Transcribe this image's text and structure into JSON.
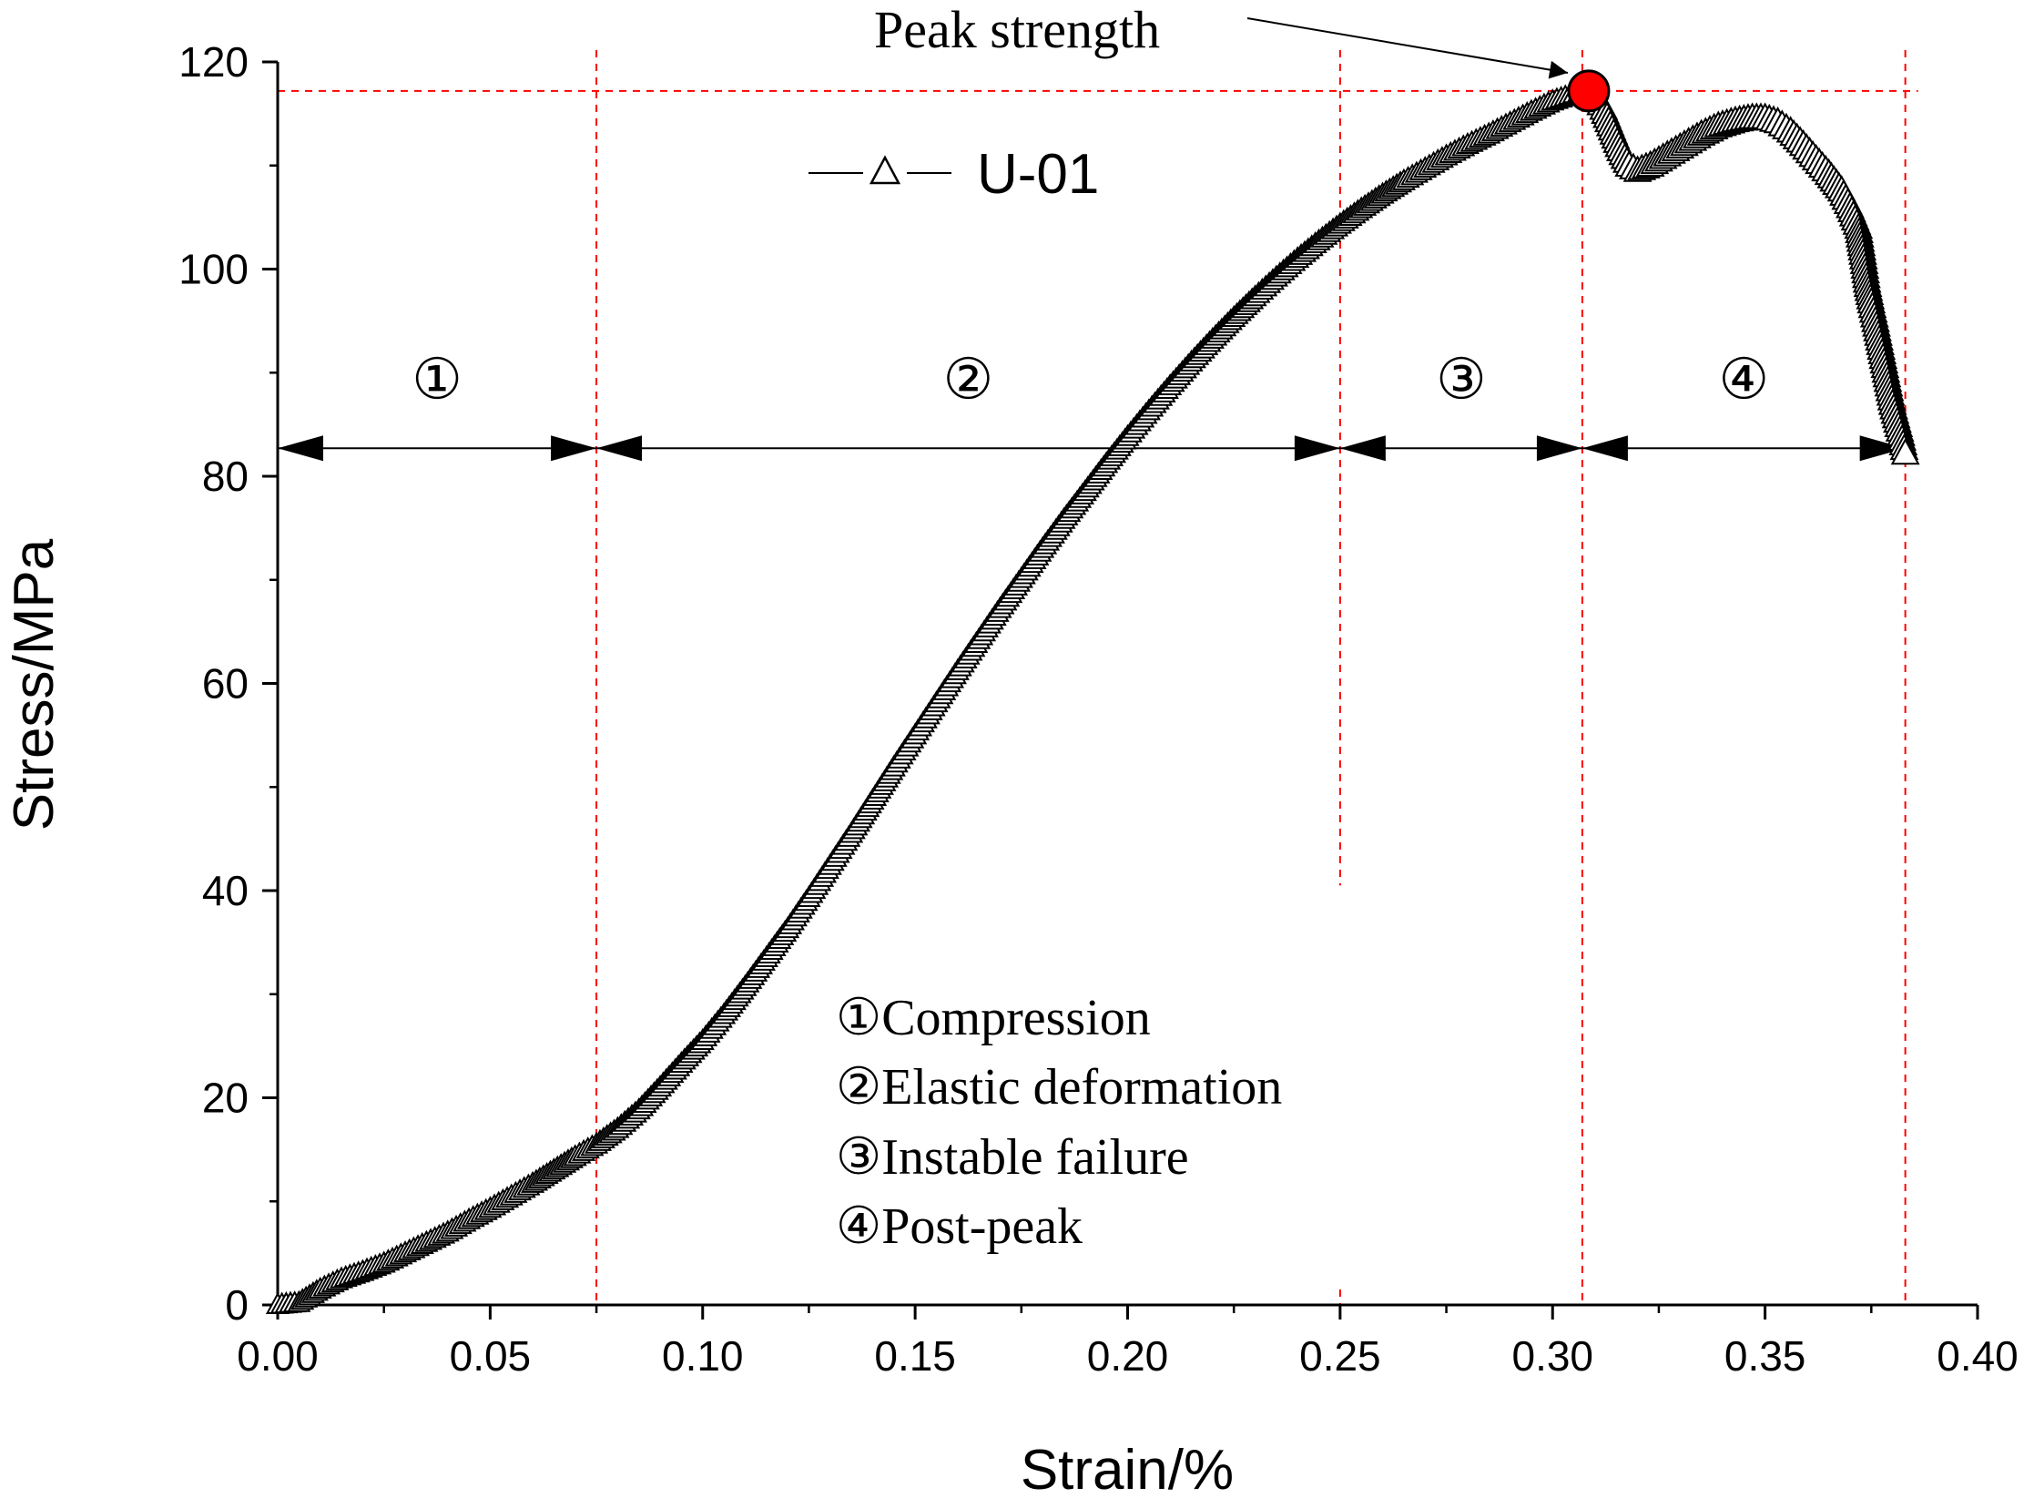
{
  "chart_data": {
    "type": "line",
    "title": "",
    "xlabel": "Strain/%",
    "ylabel": "Stress/MPa",
    "xlim": [
      0.0,
      0.4
    ],
    "ylim": [
      0,
      120
    ],
    "x_ticks": [
      "0.00",
      "0.05",
      "0.10",
      "0.15",
      "0.20",
      "0.25",
      "0.30",
      "0.35",
      "0.40"
    ],
    "y_ticks": [
      "0",
      "20",
      "40",
      "60",
      "80",
      "100",
      "120"
    ],
    "series": [
      {
        "name": "U-01",
        "marker": "open-triangle",
        "points": [
          [
            0.0,
            0.0
          ],
          [
            0.005,
            0.2
          ],
          [
            0.01,
            1.5
          ],
          [
            0.015,
            2.5
          ],
          [
            0.02,
            3.2
          ],
          [
            0.025,
            4.0
          ],
          [
            0.03,
            5.0
          ],
          [
            0.035,
            6.0
          ],
          [
            0.04,
            7.0
          ],
          [
            0.045,
            8.2
          ],
          [
            0.05,
            9.3
          ],
          [
            0.055,
            10.5
          ],
          [
            0.06,
            11.7
          ],
          [
            0.065,
            13.0
          ],
          [
            0.07,
            14.3
          ],
          [
            0.075,
            15.5
          ],
          [
            0.08,
            17.0
          ],
          [
            0.085,
            18.8
          ],
          [
            0.09,
            21.0
          ],
          [
            0.095,
            23.3
          ],
          [
            0.1,
            25.5
          ],
          [
            0.105,
            28.0
          ],
          [
            0.11,
            30.7
          ],
          [
            0.115,
            33.5
          ],
          [
            0.12,
            36.3
          ],
          [
            0.125,
            39.3
          ],
          [
            0.13,
            42.4
          ],
          [
            0.135,
            45.5
          ],
          [
            0.14,
            48.7
          ],
          [
            0.145,
            51.9
          ],
          [
            0.15,
            55.0
          ],
          [
            0.155,
            58.1
          ],
          [
            0.16,
            61.2
          ],
          [
            0.165,
            64.2
          ],
          [
            0.17,
            67.2
          ],
          [
            0.175,
            70.1
          ],
          [
            0.18,
            73.0
          ],
          [
            0.185,
            75.8
          ],
          [
            0.19,
            78.5
          ],
          [
            0.195,
            81.2
          ],
          [
            0.2,
            83.8
          ],
          [
            0.205,
            86.3
          ],
          [
            0.21,
            88.7
          ],
          [
            0.215,
            91.0
          ],
          [
            0.22,
            93.2
          ],
          [
            0.225,
            95.3
          ],
          [
            0.23,
            97.3
          ],
          [
            0.235,
            99.2
          ],
          [
            0.24,
            101.0
          ],
          [
            0.245,
            102.7
          ],
          [
            0.25,
            104.3
          ],
          [
            0.255,
            105.8
          ],
          [
            0.26,
            107.2
          ],
          [
            0.265,
            108.5
          ],
          [
            0.27,
            109.7
          ],
          [
            0.275,
            110.9
          ],
          [
            0.28,
            112.0
          ],
          [
            0.285,
            113.0
          ],
          [
            0.29,
            114.1
          ],
          [
            0.295,
            115.2
          ],
          [
            0.3,
            116.2
          ],
          [
            0.305,
            116.9
          ],
          [
            0.3085,
            117.2
          ],
          [
            0.31,
            116.8
          ],
          [
            0.312,
            115.5
          ],
          [
            0.314,
            113.5
          ],
          [
            0.316,
            111.5
          ],
          [
            0.318,
            110.0
          ],
          [
            0.32,
            109.5
          ],
          [
            0.323,
            110.0
          ],
          [
            0.327,
            111.0
          ],
          [
            0.331,
            112.0
          ],
          [
            0.335,
            113.0
          ],
          [
            0.339,
            113.8
          ],
          [
            0.343,
            114.3
          ],
          [
            0.347,
            114.6
          ],
          [
            0.35,
            114.6
          ],
          [
            0.353,
            114.2
          ],
          [
            0.356,
            113.3
          ],
          [
            0.359,
            112.0
          ],
          [
            0.362,
            110.6
          ],
          [
            0.365,
            109.2
          ],
          [
            0.368,
            107.6
          ],
          [
            0.37,
            106.0
          ],
          [
            0.372,
            104.0
          ],
          [
            0.373,
            101.5
          ],
          [
            0.374,
            98.8
          ],
          [
            0.375,
            96.8
          ],
          [
            0.376,
            95.0
          ],
          [
            0.378,
            91.0
          ],
          [
            0.38,
            87.0
          ],
          [
            0.382,
            84.0
          ],
          [
            0.383,
            82.2
          ]
        ]
      }
    ],
    "peak_strength": {
      "label": "Peak strength",
      "x": 0.3085,
      "y": 117.2,
      "color": "#ff0000"
    },
    "reference_lines": {
      "color": "#ff0000",
      "vertical_x": [
        0.075,
        0.25,
        0.307,
        0.383
      ],
      "horizontal_y": [
        117.2
      ]
    },
    "stage_arrows_y": 82.7,
    "stages": [
      {
        "symbol": "①",
        "name": "Compression",
        "from": 0.0,
        "to": 0.075
      },
      {
        "symbol": "②",
        "name": "Elastic deformation",
        "from": 0.075,
        "to": 0.25
      },
      {
        "symbol": "③",
        "name": "Instable failure",
        "from": 0.25,
        "to": 0.307
      },
      {
        "symbol": "④",
        "name": "Post-peak",
        "from": 0.307,
        "to": 0.383
      }
    ],
    "legend": {
      "label": "U-01",
      "position": "top-left"
    }
  }
}
